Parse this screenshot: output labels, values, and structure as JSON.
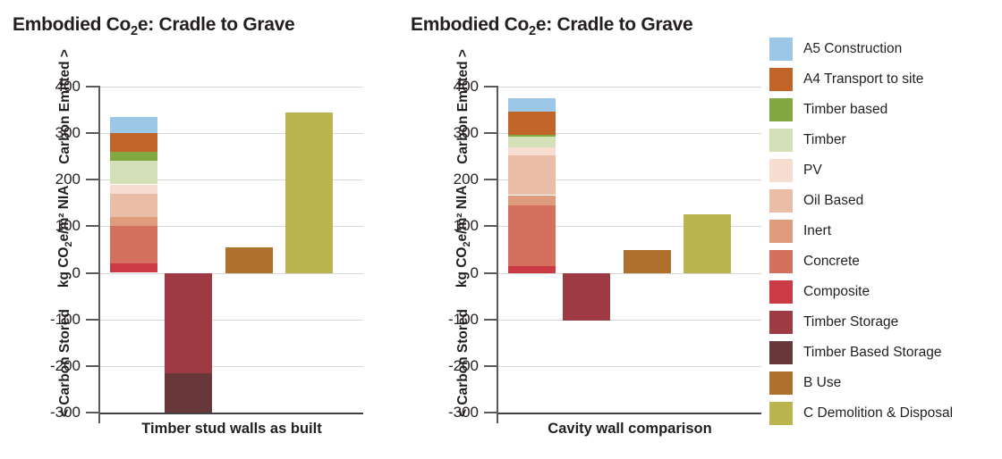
{
  "ui": {
    "titles": [
      {
        "pre": "Embodied Co",
        "sub": "2",
        "post": "e: Cradle to Grave"
      },
      {
        "pre": "Embodied Co",
        "sub": "2",
        "post": "e: Cradle to Grave"
      }
    ],
    "y_axis": {
      "top_annotation": "Carbon Emitted >",
      "title_parts": {
        "p1": "kg CO",
        "sub": "2",
        "p2": "e/m² NIA"
      },
      "bottom_annotation": "< Carbon Stored"
    }
  },
  "legend": {
    "items": [
      {
        "label": "A5 Construction",
        "color": "#9dc7e6"
      },
      {
        "label": "A4 Transport to site",
        "color": "#c06428"
      },
      {
        "label": "Timber based",
        "color": "#82a841"
      },
      {
        "label": "Timber",
        "color": "#d3e0b8"
      },
      {
        "label": "PV",
        "color": "#f6ddcf"
      },
      {
        "label": "Oil Based",
        "color": "#e9bda6"
      },
      {
        "label": "Inert",
        "color": "#df9c7d"
      },
      {
        "label": "Concrete",
        "color": "#d4705e"
      },
      {
        "label": "Composite",
        "color": "#ca3b45"
      },
      {
        "label": "Timber Storage",
        "color": "#9e3a43"
      },
      {
        "label": "Timber Based Storage",
        "color": "#683739"
      },
      {
        "label": "B Use",
        "color": "#af702e"
      },
      {
        "label": "C Demolition & Disposal",
        "color": "#bab54f"
      }
    ]
  },
  "chart_data": [
    {
      "type": "bar",
      "stacked": true,
      "title": "Embodied Co2e: Cradle to Grave",
      "x_category": "Timber stud walls as built",
      "ylabel": "kg CO2e/m2 NIA",
      "y_annotations": [
        "Carbon Emitted >",
        "< Carbon Stored"
      ],
      "ylim": [
        -300,
        400
      ],
      "yticks": [
        400,
        300,
        200,
        100,
        0,
        -100,
        -200,
        -300
      ],
      "grid": true,
      "bars": [
        {
          "name": "embodied-stack",
          "total": 335,
          "segments": [
            {
              "label": "Composite",
              "value": 20
            },
            {
              "label": "Concrete",
              "value": 80
            },
            {
              "label": "Inert",
              "value": 20
            },
            {
              "label": "Oil Based",
              "value": 50
            },
            {
              "label": "PV",
              "value": 20
            },
            {
              "label": "Timber",
              "value": 50
            },
            {
              "label": "Timber based",
              "value": 20
            },
            {
              "label": "A4 Transport to site",
              "value": 40
            },
            {
              "label": "A5 Construction",
              "value": 35
            }
          ]
        },
        {
          "name": "storage-stack",
          "total": -300,
          "segments": [
            {
              "label": "Timber Storage",
              "value": -215
            },
            {
              "label": "Timber Based Storage",
              "value": -85
            }
          ]
        },
        {
          "name": "b-use",
          "total": 55,
          "segments": [
            {
              "label": "B Use",
              "value": 55
            }
          ]
        },
        {
          "name": "c-demolition-disposal",
          "total": 345,
          "segments": [
            {
              "label": "C Demolition & Disposal",
              "value": 345
            }
          ]
        }
      ]
    },
    {
      "type": "bar",
      "stacked": true,
      "title": "Embodied Co2e: Cradle to Grave",
      "x_category": "Cavity wall comparison",
      "ylabel": "kg CO2e/m2 NIA",
      "y_annotations": [
        "Carbon Emitted >",
        "< Carbon Stored"
      ],
      "ylim": [
        -300,
        400
      ],
      "yticks": [
        400,
        300,
        200,
        100,
        0,
        -100,
        -200,
        -300
      ],
      "grid": true,
      "bars": [
        {
          "name": "embodied-stack",
          "total": 376,
          "segments": [
            {
              "label": "Composite",
              "value": 15
            },
            {
              "label": "Concrete",
              "value": 130
            },
            {
              "label": "Inert",
              "value": 22
            },
            {
              "label": "Oil Based",
              "value": 85
            },
            {
              "label": "PV",
              "value": 18
            },
            {
              "label": "Timber",
              "value": 22
            },
            {
              "label": "Timber based",
              "value": 4
            },
            {
              "label": "A4 Transport to site",
              "value": 50
            },
            {
              "label": "A5 Construction",
              "value": 30
            }
          ]
        },
        {
          "name": "storage-stack",
          "total": -103,
          "segments": [
            {
              "label": "Timber Storage",
              "value": -103
            }
          ]
        },
        {
          "name": "b-use",
          "total": 50,
          "segments": [
            {
              "label": "B Use",
              "value": 50
            }
          ]
        },
        {
          "name": "c-demolition-disposal",
          "total": 125,
          "segments": [
            {
              "label": "C Demolition & Disposal",
              "value": 125
            }
          ]
        }
      ]
    }
  ]
}
